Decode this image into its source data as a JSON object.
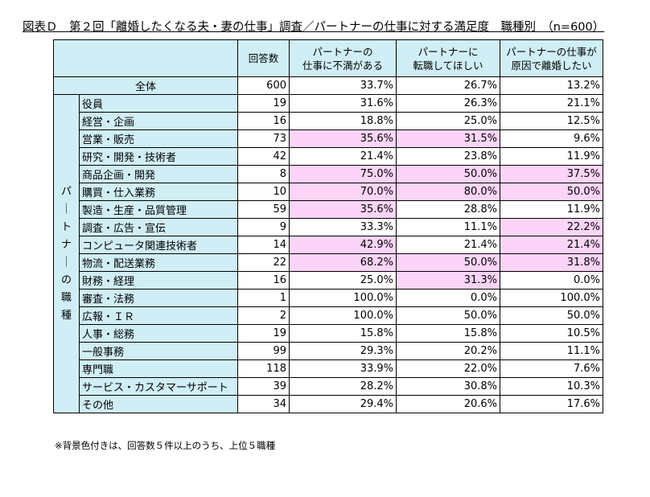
{
  "title": "図表Ｄ　第２回「離婚したくなる夫・妻の仕事」調査／パートナーの仕事に対する満足度　職種別　（n=600）",
  "chart_data": {
    "type": "table",
    "columns": [
      "回答数",
      "パートナーの\n仕事に不満がある",
      "パートナーに\n転職してほしい",
      "パートナーの仕事が\n原因で離婚したい"
    ],
    "total": {
      "label": "全体",
      "values": [
        "600",
        "33.7%",
        "26.7%",
        "13.2%"
      ]
    },
    "group_label": "パートナーの職種",
    "rows": [
      {
        "label": "役員",
        "values": [
          "19",
          "31.6%",
          "26.3%",
          "21.1%"
        ],
        "highlight": [
          false,
          false,
          false
        ]
      },
      {
        "label": "経営・企画",
        "values": [
          "16",
          "18.8%",
          "25.0%",
          "12.5%"
        ],
        "highlight": [
          false,
          false,
          false
        ]
      },
      {
        "label": "営業・販売",
        "values": [
          "73",
          "35.6%",
          "31.5%",
          "9.6%"
        ],
        "highlight": [
          true,
          true,
          false
        ]
      },
      {
        "label": "研究・開発・技術者",
        "values": [
          "42",
          "21.4%",
          "23.8%",
          "11.9%"
        ],
        "highlight": [
          false,
          false,
          false
        ]
      },
      {
        "label": "商品企画・開発",
        "values": [
          "8",
          "75.0%",
          "50.0%",
          "37.5%"
        ],
        "highlight": [
          true,
          true,
          true
        ]
      },
      {
        "label": "購買・仕入業務",
        "values": [
          "10",
          "70.0%",
          "80.0%",
          "50.0%"
        ],
        "highlight": [
          true,
          true,
          true
        ]
      },
      {
        "label": "製造・生産・品質管理",
        "values": [
          "59",
          "35.6%",
          "28.8%",
          "11.9%"
        ],
        "highlight": [
          true,
          false,
          false
        ]
      },
      {
        "label": "調査・広告・宣伝",
        "values": [
          "9",
          "33.3%",
          "11.1%",
          "22.2%"
        ],
        "highlight": [
          false,
          false,
          true
        ]
      },
      {
        "label": "コンピュータ関連技術者",
        "values": [
          "14",
          "42.9%",
          "21.4%",
          "21.4%"
        ],
        "highlight": [
          true,
          false,
          true
        ]
      },
      {
        "label": "物流・配送業務",
        "values": [
          "22",
          "68.2%",
          "50.0%",
          "31.8%"
        ],
        "highlight": [
          true,
          true,
          true
        ]
      },
      {
        "label": "財務・経理",
        "values": [
          "16",
          "25.0%",
          "31.3%",
          "0.0%"
        ],
        "highlight": [
          false,
          true,
          false
        ]
      },
      {
        "label": "審査・法務",
        "values": [
          "1",
          "100.0%",
          "0.0%",
          "100.0%"
        ],
        "highlight": [
          false,
          false,
          false
        ]
      },
      {
        "label": "広報・ＩＲ",
        "values": [
          "2",
          "100.0%",
          "50.0%",
          "50.0%"
        ],
        "highlight": [
          false,
          false,
          false
        ]
      },
      {
        "label": "人事・総務",
        "values": [
          "19",
          "15.8%",
          "15.8%",
          "10.5%"
        ],
        "highlight": [
          false,
          false,
          false
        ]
      },
      {
        "label": "一般事務",
        "values": [
          "99",
          "29.3%",
          "20.2%",
          "11.1%"
        ],
        "highlight": [
          false,
          false,
          false
        ]
      },
      {
        "label": "専門職",
        "values": [
          "118",
          "33.9%",
          "22.0%",
          "7.6%"
        ],
        "highlight": [
          false,
          false,
          false
        ]
      },
      {
        "label": "サービス・カスタマーサポート",
        "values": [
          "39",
          "28.2%",
          "30.8%",
          "10.3%"
        ],
        "highlight": [
          false,
          false,
          false
        ]
      },
      {
        "label": "その他",
        "values": [
          "34",
          "29.4%",
          "20.6%",
          "17.6%"
        ],
        "highlight": [
          false,
          false,
          false
        ]
      }
    ],
    "note": "※背景色付きは、回答数５件以上のうち、上位５職種"
  }
}
